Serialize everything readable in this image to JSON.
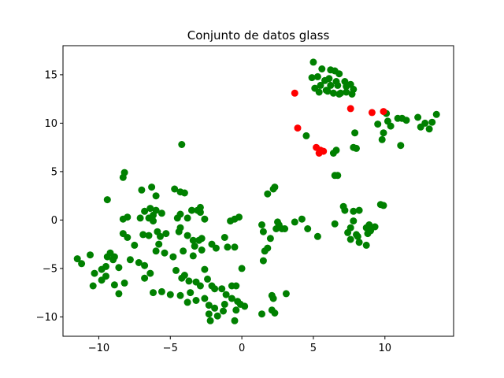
{
  "chart_data": {
    "type": "scatter",
    "title": "Conjunto de datos glass",
    "xlabel": "",
    "ylabel": "",
    "xlim": [
      -12.5,
      14.8
    ],
    "ylim": [
      -12,
      18
    ],
    "x_ticks": [
      -10,
      -5,
      0,
      5,
      10
    ],
    "x_tick_labels": [
      "−10",
      "−5",
      "0",
      "5",
      "10"
    ],
    "y_ticks": [
      -10,
      -5,
      0,
      5,
      10,
      15
    ],
    "y_tick_labels": [
      "−10",
      "−5",
      "0",
      "5",
      "10",
      "15"
    ],
    "grid": false,
    "legend": "none",
    "series": [
      {
        "color": "#008000",
        "points": [
          [
            5.0,
            16.3
          ],
          [
            5.6,
            15.6
          ],
          [
            6.2,
            15.5
          ],
          [
            6.5,
            15.4
          ],
          [
            6.8,
            15.1
          ],
          [
            4.9,
            14.7
          ],
          [
            5.3,
            14.8
          ],
          [
            5.8,
            14.4
          ],
          [
            6.1,
            14.6
          ],
          [
            6.6,
            14.3
          ],
          [
            7.2,
            14.3
          ],
          [
            7.6,
            14.0
          ],
          [
            5.1,
            13.6
          ],
          [
            5.5,
            13.9
          ],
          [
            6.2,
            13.9
          ],
          [
            6.7,
            13.9
          ],
          [
            7.3,
            13.8
          ],
          [
            7.8,
            13.5
          ],
          [
            5.4,
            13.2
          ],
          [
            5.9,
            13.4
          ],
          [
            6.4,
            13.1
          ],
          [
            6.9,
            13.1
          ],
          [
            7.3,
            13.2
          ],
          [
            7.7,
            13.0
          ],
          [
            6.8,
            13.0
          ],
          [
            6.0,
            13.3
          ],
          [
            9.5,
            9.9
          ],
          [
            9.9,
            9.0
          ],
          [
            10.1,
            11.0
          ],
          [
            10.2,
            10.2
          ],
          [
            10.4,
            9.7
          ],
          [
            10.9,
            10.5
          ],
          [
            11.2,
            10.5
          ],
          [
            11.5,
            10.3
          ],
          [
            12.3,
            10.6
          ],
          [
            12.8,
            10.0
          ],
          [
            12.5,
            9.6
          ],
          [
            13.1,
            9.4
          ],
          [
            13.3,
            10.1
          ],
          [
            13.6,
            10.9
          ],
          [
            11.1,
            7.7
          ],
          [
            9.8,
            8.3
          ],
          [
            7.9,
            9.0
          ],
          [
            8.0,
            7.4
          ],
          [
            7.8,
            7.5
          ],
          [
            6.6,
            7.2
          ],
          [
            6.4,
            6.9
          ],
          [
            4.5,
            8.7
          ],
          [
            6.5,
            4.6
          ],
          [
            6.7,
            4.6
          ],
          [
            -4.2,
            7.8
          ],
          [
            -8.2,
            4.9
          ],
          [
            -8.3,
            4.4
          ],
          [
            -6.3,
            3.4
          ],
          [
            -7.0,
            3.1
          ],
          [
            -4.7,
            3.2
          ],
          [
            -4.3,
            2.9
          ],
          [
            -4.0,
            2.8
          ],
          [
            -6.0,
            2.5
          ],
          [
            -9.4,
            2.1
          ],
          [
            -6.8,
            0.9
          ],
          [
            -6.4,
            1.2
          ],
          [
            -6.0,
            1.0
          ],
          [
            -5.6,
            0.7
          ],
          [
            -3.5,
            1.0
          ],
          [
            -3.1,
            1.0
          ],
          [
            -2.9,
            1.3
          ],
          [
            -4.3,
            0.6
          ],
          [
            -3.8,
            0.2
          ],
          [
            -4.5,
            0.2
          ],
          [
            -6.2,
            0.5
          ],
          [
            -8.0,
            0.3
          ],
          [
            -8.3,
            0.1
          ],
          [
            -7.1,
            0.2
          ],
          [
            -6.5,
            0.2
          ],
          [
            -6.2,
            -0.1
          ],
          [
            -2.9,
            0.8
          ],
          [
            -2.6,
            0.1
          ],
          [
            -0.8,
            -0.1
          ],
          [
            -0.5,
            0.1
          ],
          [
            -0.2,
            0.3
          ],
          [
            1.8,
            2.7
          ],
          [
            2.2,
            3.2
          ],
          [
            2.3,
            3.4
          ],
          [
            3.7,
            -0.2
          ],
          [
            4.2,
            0.1
          ],
          [
            4.6,
            -0.9
          ],
          [
            5.3,
            -1.7
          ],
          [
            2.0,
            -1.9
          ],
          [
            2.4,
            -0.9
          ],
          [
            2.6,
            -0.5
          ],
          [
            2.8,
            -0.9
          ],
          [
            3.0,
            -0.9
          ],
          [
            2.5,
            -0.2
          ],
          [
            1.4,
            -0.5
          ],
          [
            1.5,
            -1.2
          ],
          [
            1.6,
            -3.2
          ],
          [
            1.8,
            -2.9
          ],
          [
            1.5,
            -4.2
          ],
          [
            2.1,
            -7.8
          ],
          [
            2.2,
            -8.1
          ],
          [
            3.1,
            -7.6
          ],
          [
            2.1,
            -9.3
          ],
          [
            2.3,
            -9.6
          ],
          [
            1.4,
            -9.7
          ],
          [
            7.1,
            1.4
          ],
          [
            7.2,
            1.0
          ],
          [
            7.6,
            -0.8
          ],
          [
            7.8,
            -0.1
          ],
          [
            7.8,
            0.9
          ],
          [
            8.2,
            1.0
          ],
          [
            8.7,
            -0.8
          ],
          [
            8.9,
            -0.5
          ],
          [
            9.3,
            -0.7
          ],
          [
            9.7,
            1.6
          ],
          [
            9.9,
            1.5
          ],
          [
            8.8,
            -1.4
          ],
          [
            8.0,
            -1.5
          ],
          [
            7.6,
            -2.0
          ],
          [
            8.2,
            -2.3
          ],
          [
            8.7,
            -2.6
          ],
          [
            6.5,
            -0.4
          ],
          [
            7.4,
            -1.3
          ],
          [
            8.1,
            -1.7
          ],
          [
            9.0,
            -1.1
          ],
          [
            -11.5,
            -4.0
          ],
          [
            -11.2,
            -4.5
          ],
          [
            -10.6,
            -3.6
          ],
          [
            -10.3,
            -5.5
          ],
          [
            -9.8,
            -5.1
          ],
          [
            -9.5,
            -4.8
          ],
          [
            -9.2,
            -3.4
          ],
          [
            -9.0,
            -4.1
          ],
          [
            -8.6,
            -4.9
          ],
          [
            -9.4,
            -3.8
          ],
          [
            -8.9,
            -3.8
          ],
          [
            -7.8,
            -4.1
          ],
          [
            -7.5,
            -2.6
          ],
          [
            -7.2,
            -4.4
          ],
          [
            -6.8,
            -4.7
          ],
          [
            -8.3,
            -1.4
          ],
          [
            -8.0,
            -1.8
          ],
          [
            -6.9,
            -1.5
          ],
          [
            -6.5,
            -1.6
          ],
          [
            -5.9,
            -1.2
          ],
          [
            -5.7,
            -1.7
          ],
          [
            -5.3,
            -1.4
          ],
          [
            -5.8,
            -2.5
          ],
          [
            -6.0,
            -3.2
          ],
          [
            -5.4,
            -3.4
          ],
          [
            -4.8,
            -3.8
          ],
          [
            -4.4,
            -1.2
          ],
          [
            -4.3,
            -0.8
          ],
          [
            -3.8,
            -1.6
          ],
          [
            -3.4,
            -2.1
          ],
          [
            -3.0,
            -2.1
          ],
          [
            -2.8,
            -1.9
          ],
          [
            -3.3,
            -2.7
          ],
          [
            -2.8,
            -3.1
          ],
          [
            -2.1,
            -2.5
          ],
          [
            -1.8,
            -2.9
          ],
          [
            -1.2,
            -1.8
          ],
          [
            -1.0,
            -2.8
          ],
          [
            -4.1,
            -3.2
          ],
          [
            -3.4,
            -3.7
          ],
          [
            -10.4,
            -6.8
          ],
          [
            -9.8,
            -6.2
          ],
          [
            -9.5,
            -5.8
          ],
          [
            -8.9,
            -6.7
          ],
          [
            -8.6,
            -7.6
          ],
          [
            -8.2,
            -6.5
          ],
          [
            -6.8,
            -6.0
          ],
          [
            -6.4,
            -5.5
          ],
          [
            -6.2,
            -7.5
          ],
          [
            -5.6,
            -7.4
          ],
          [
            -5.0,
            -7.7
          ],
          [
            -4.6,
            -5.2
          ],
          [
            -4.2,
            -6.0
          ],
          [
            -4.0,
            -5.7
          ],
          [
            -3.7,
            -6.3
          ],
          [
            -3.2,
            -6.4
          ],
          [
            -2.9,
            -6.8
          ],
          [
            -2.6,
            -5.1
          ],
          [
            -2.4,
            -6.1
          ],
          [
            -2.1,
            -6.8
          ],
          [
            -1.9,
            -7.1
          ],
          [
            -1.4,
            -7.1
          ],
          [
            -1.1,
            -7.7
          ],
          [
            -0.7,
            -6.8
          ],
          [
            -0.4,
            -6.8
          ],
          [
            -4.3,
            -7.8
          ],
          [
            -3.8,
            -8.5
          ],
          [
            -3.6,
            -7.5
          ],
          [
            -3.2,
            -8.3
          ],
          [
            -2.6,
            -8.1
          ],
          [
            -2.3,
            -8.8
          ],
          [
            -1.9,
            -9.1
          ],
          [
            -1.2,
            -8.7
          ],
          [
            -0.7,
            -8.1
          ],
          [
            -0.3,
            -8.4
          ],
          [
            -0.1,
            -8.7
          ],
          [
            0.2,
            -8.9
          ],
          [
            -0.4,
            -9.3
          ],
          [
            -1.3,
            -9.4
          ],
          [
            -1.7,
            -9.9
          ],
          [
            -2.3,
            -9.7
          ],
          [
            -2.2,
            -10.4
          ],
          [
            -0.5,
            -10.4
          ],
          [
            0.0,
            -5.0
          ],
          [
            -0.5,
            -2.8
          ]
        ]
      },
      {
        "color": "#ff0000",
        "points": [
          [
            3.7,
            13.1
          ],
          [
            7.6,
            11.5
          ],
          [
            9.1,
            11.1
          ],
          [
            9.9,
            11.2
          ],
          [
            3.9,
            9.5
          ],
          [
            5.2,
            7.5
          ],
          [
            5.5,
            7.2
          ],
          [
            5.4,
            6.9
          ],
          [
            5.7,
            7.1
          ]
        ]
      }
    ]
  }
}
